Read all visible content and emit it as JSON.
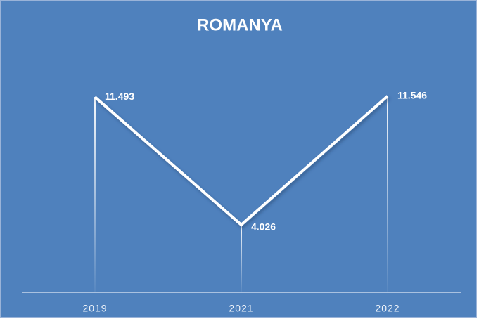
{
  "chart_data": {
    "type": "line",
    "title": "ROMANYA",
    "categories": [
      "2019",
      "2021",
      "2022"
    ],
    "values": [
      11.493,
      4.026,
      11.546
    ],
    "color": "#ffffff",
    "background": "#4f81bd",
    "ylim": [
      0,
      14
    ]
  }
}
